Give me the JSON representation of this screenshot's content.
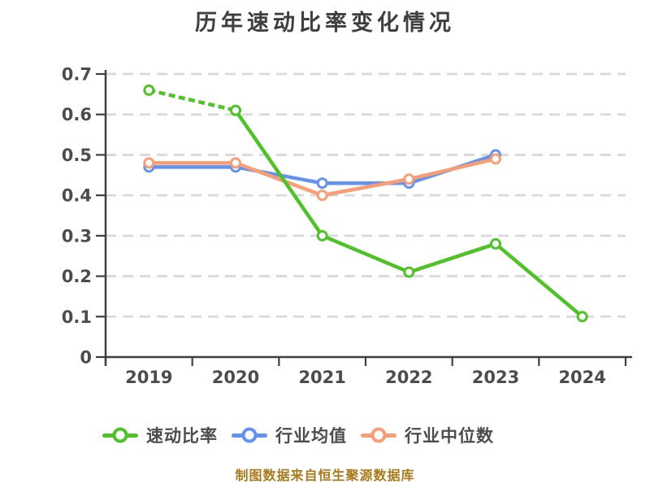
{
  "chart_data": {
    "type": "line",
    "title": "历年速动比率变化情况",
    "categories": [
      "2019",
      "2020",
      "2021",
      "2022",
      "2023",
      "2024"
    ],
    "series": [
      {
        "name": "速动比率",
        "color": "#4fc228",
        "values": [
          0.66,
          0.61,
          0.3,
          0.21,
          0.28,
          0.1
        ],
        "z": 3,
        "dashed_segments": [
          0
        ]
      },
      {
        "name": "行业均值",
        "color": "#6492f0",
        "values": [
          0.47,
          0.47,
          0.43,
          0.43,
          0.5,
          null
        ],
        "z": 1,
        "dashed_segments": []
      },
      {
        "name": "行业中位数",
        "color": "#f79e77",
        "values": [
          0.48,
          0.48,
          0.4,
          0.44,
          0.49,
          null
        ],
        "z": 2,
        "dashed_segments": []
      }
    ],
    "y_ticks": [
      0,
      0.1,
      0.2,
      0.3,
      0.4,
      0.5,
      0.6,
      0.7
    ],
    "ylim": [
      0,
      0.7
    ],
    "grid": "horizontal-dashed",
    "legend_position": "bottom",
    "marker": "hollow-circle"
  },
  "footer": {
    "text": "制图数据来自恒生聚源数据库",
    "color": "#a87a1b"
  },
  "style": {
    "axis_color": "#3f3f3f",
    "grid_color": "#d9d9d9",
    "tick_label_color": "#4c4c4c",
    "title_color": "#3e3e3e",
    "legend_text_color": "#4c4c4c",
    "background": "#ffffff",
    "marker_fill": "#ffffff"
  }
}
